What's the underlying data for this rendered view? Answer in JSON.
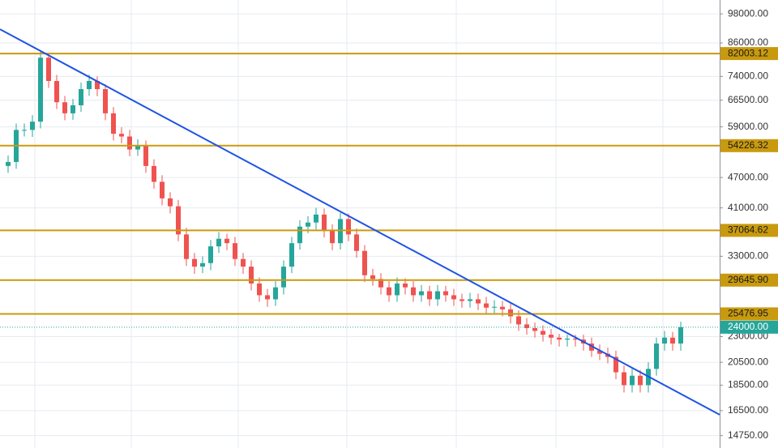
{
  "chart_data": {
    "type": "candlestick",
    "log_scale": true,
    "grid": true,
    "ylim": [
      13950,
      104300
    ],
    "xlim": [
      0,
      88.8
    ],
    "yticks": [
      {
        "value": 98000,
        "label": "98000.00"
      },
      {
        "value": 86000,
        "label": "86000.00"
      },
      {
        "value": 74000,
        "label": "74000.00"
      },
      {
        "value": 66500,
        "label": "66500.00"
      },
      {
        "value": 59000,
        "label": "59000.00"
      },
      {
        "value": 47000,
        "label": "47000.00"
      },
      {
        "value": 41000,
        "label": "41000.00"
      },
      {
        "value": 33000,
        "label": "33000.00"
      },
      {
        "value": 23000,
        "label": "23000.00"
      },
      {
        "value": 20500,
        "label": "20500.00"
      },
      {
        "value": 18500,
        "label": "18500.00"
      },
      {
        "value": 16500,
        "label": "16500.00"
      },
      {
        "value": 14750,
        "label": "14750.00"
      }
    ],
    "up_color": "#26a69a",
    "down_color": "#ef5350",
    "open": [
      49500,
      50400,
      58200,
      58200,
      60400,
      80500,
      72500,
      65900,
      62700,
      65000,
      69900,
      72500,
      69900,
      62700,
      57200,
      56500,
      53300,
      54200,
      49500,
      46100,
      42800,
      41300,
      36400,
      32600,
      31500,
      32000,
      34500,
      35700,
      35000,
      32600,
      31500,
      29200,
      27700,
      27200,
      28700,
      31500,
      35000,
      37700,
      38400,
      39800,
      37000,
      35000,
      39000,
      36400,
      33800,
      30300,
      29800,
      28700,
      27700,
      29200,
      28700,
      27700,
      28200,
      27200,
      28200,
      27700,
      27200,
      27000,
      27200,
      26700,
      26200,
      26300,
      26000,
      25200,
      24300,
      23900,
      23600,
      23200,
      22900,
      22700,
      22800,
      22700,
      22300,
      21600,
      21300,
      21000,
      19600,
      18500,
      19300,
      18500,
      19900,
      22300,
      22900,
      22300
    ],
    "high": [
      51900,
      59900,
      59900,
      62200,
      82900,
      82000,
      74500,
      67800,
      66900,
      72000,
      74600,
      74000,
      71500,
      64500,
      58900,
      58200,
      55800,
      55500,
      51000,
      47500,
      44000,
      42500,
      37500,
      33500,
      33000,
      35500,
      36800,
      36500,
      36000,
      33500,
      32400,
      30000,
      28500,
      29500,
      32400,
      36000,
      38800,
      39500,
      41000,
      40900,
      38100,
      40100,
      40000,
      37400,
      34700,
      31200,
      30600,
      29500,
      30000,
      29900,
      29500,
      29000,
      28900,
      29000,
      28900,
      28500,
      27900,
      28000,
      27900,
      27500,
      27100,
      27000,
      26700,
      25900,
      25000,
      24500,
      24200,
      23800,
      23300,
      23200,
      23200,
      23200,
      22900,
      22200,
      21900,
      21600,
      20200,
      19900,
      19800,
      20500,
      22900,
      23600,
      23500,
      24600
    ],
    "low": [
      48000,
      48900,
      56500,
      56400,
      58600,
      70300,
      63900,
      60800,
      60900,
      63100,
      67800,
      67700,
      60800,
      55500,
      54800,
      51700,
      51800,
      48000,
      44700,
      41500,
      40000,
      35300,
      31600,
      30500,
      30600,
      31000,
      33500,
      33900,
      31600,
      30500,
      28300,
      26900,
      26300,
      26400,
      27800,
      30600,
      34000,
      36600,
      37200,
      35900,
      33900,
      34000,
      35300,
      32800,
      29400,
      28900,
      27800,
      26900,
      26900,
      27800,
      26900,
      26900,
      26400,
      26400,
      26900,
      26400,
      26200,
      26200,
      25900,
      25400,
      25400,
      25200,
      24400,
      23600,
      23200,
      22900,
      22500,
      22200,
      22000,
      22000,
      22000,
      21600,
      21000,
      20700,
      20400,
      19000,
      17900,
      17900,
      17900,
      17900,
      19300,
      21600,
      21600,
      21600
    ],
    "close": [
      50400,
      58200,
      58200,
      60400,
      80500,
      72500,
      65900,
      62700,
      65000,
      69900,
      72500,
      69900,
      62700,
      57200,
      56500,
      53300,
      54200,
      49500,
      46100,
      42800,
      41300,
      36400,
      32600,
      31500,
      32000,
      34500,
      35700,
      35000,
      32600,
      31500,
      29200,
      27700,
      27200,
      28700,
      31500,
      35000,
      37700,
      38400,
      39800,
      37000,
      35000,
      39000,
      36400,
      33800,
      30300,
      29800,
      28700,
      27700,
      29200,
      28700,
      27700,
      28200,
      27200,
      28200,
      27700,
      27200,
      27000,
      27200,
      26700,
      26200,
      26300,
      26000,
      25200,
      24300,
      23900,
      23600,
      23200,
      22900,
      22700,
      22800,
      22700,
      22300,
      21600,
      21300,
      21000,
      19600,
      18500,
      19300,
      18500,
      19900,
      22300,
      22900,
      22300,
      24000
    ],
    "levels": [
      {
        "value": 82003.12,
        "label": "82003.12"
      },
      {
        "value": 54226.32,
        "label": "54226.32"
      },
      {
        "value": 37064.62,
        "label": "37064.62"
      },
      {
        "value": 29645.9,
        "label": "29645.90"
      },
      {
        "value": 25476.95,
        "label": "25476.95"
      }
    ],
    "level_color": "#c99a0e",
    "current_price": {
      "value": 24000,
      "label": "24000.00"
    },
    "current_color": "#26a69a",
    "trend_line": {
      "start": [
        0,
        91460
      ],
      "end": [
        88.8,
        16200
      ],
      "color": "#1e53e5"
    }
  }
}
